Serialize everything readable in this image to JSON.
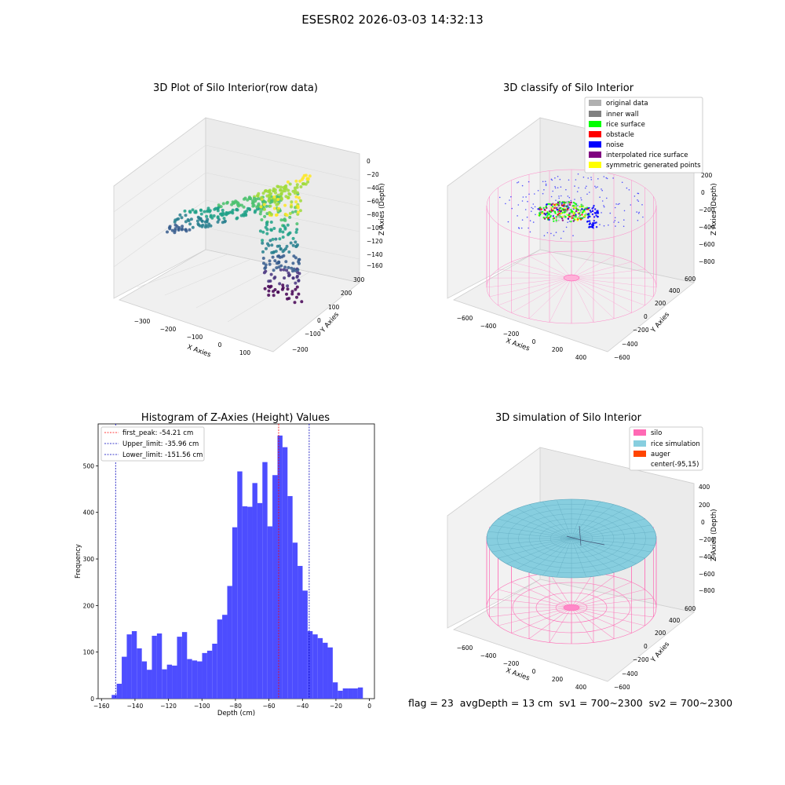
{
  "figure_title": "ESESR02 2026-03-03 14:32:13",
  "status": {
    "flag": "flag = 23",
    "avg_depth": "avgDepth = 13 cm",
    "sv1": "sv1 = 700~2300",
    "sv2": "sv2 = 700~2300"
  },
  "colors": {
    "histogram_bar": "#4d4dff",
    "first_peak_line": "#ff0000",
    "limit_line": "#0000bb",
    "silo": "#ff69b4",
    "rice_simulation": "#87cedf",
    "auger": "#ff4500",
    "original_data": "#b0b0b0",
    "inner_wall": "#808080",
    "rice_surface": "#00ff00",
    "obstacle": "#ff0000",
    "noise": "#0000ff",
    "interpolated_rice_surface": "#800080",
    "symmetric_generated_points": "#ffff00"
  },
  "chart_data": [
    {
      "type": "scatter",
      "title": "3D Plot of Silo Interior(row data)",
      "xlabel": "X Axies",
      "ylabel": "Y Axies",
      "zlabel": "Z Axies (Depth)",
      "x_ticks": [
        "−300",
        "−200",
        "−100",
        "0",
        "100"
      ],
      "y_ticks": [
        "−200",
        "−100",
        "0",
        "100",
        "200",
        "300"
      ],
      "z_ticks": [
        "0",
        "−20",
        "−40",
        "−60",
        "−80",
        "−100",
        "−120",
        "−140",
        "−160"
      ],
      "zlim": [
        -160,
        0
      ],
      "colormap": "viridis"
    },
    {
      "type": "scatter",
      "title": "3D classify of Silo Interior",
      "xlabel": "X Axies",
      "ylabel": "Y Axies",
      "zlabel": "Z Axies (Depth)",
      "x_ticks": [
        "−600",
        "−400",
        "−200",
        "0",
        "200",
        "400"
      ],
      "y_ticks": [
        "−600",
        "−400",
        "−200",
        "0",
        "200",
        "400",
        "600"
      ],
      "z_ticks": [
        "200",
        "0",
        "−200",
        "−400",
        "−600",
        "−800"
      ],
      "legend_placement": "top-right",
      "legend": [
        "original data",
        "inner wall",
        "rice surface",
        "obstacle",
        "noise",
        "interpolated rice surface",
        "symmetric generated points"
      ]
    },
    {
      "type": "bar",
      "title": "Histogram of Z-Axies (Height) Values",
      "xlabel": "Depth (cm)",
      "ylabel": "Frequency",
      "xlim": [
        -162,
        3
      ],
      "ylim": [
        0,
        590
      ],
      "x_ticks": [
        -160,
        -140,
        -120,
        -100,
        -80,
        -60,
        -40,
        -20,
        0
      ],
      "y_ticks": [
        0,
        100,
        200,
        300,
        400,
        500
      ],
      "bin_start": -153.9,
      "bin_width": 3.0,
      "values": [
        8,
        32,
        90,
        138,
        145,
        108,
        80,
        62,
        135,
        140,
        63,
        73,
        71,
        133,
        143,
        85,
        82,
        80,
        98,
        103,
        118,
        170,
        180,
        242,
        368,
        488,
        413,
        412,
        463,
        420,
        508,
        370,
        480,
        565,
        540,
        435,
        335,
        285,
        232,
        145,
        138,
        130,
        120,
        110,
        35,
        17,
        22,
        22,
        22,
        24
      ],
      "vlines": [
        {
          "label": "first_peak: -54.21 cm",
          "x": -54.21,
          "color": "#ff0000"
        },
        {
          "label": "Upper_limit: -35.96 cm",
          "x": -35.96,
          "color": "#0000bb"
        },
        {
          "label": "Lower_limit: -151.56 cm",
          "x": -151.56,
          "color": "#0000bb"
        }
      ],
      "legend_placement": "top-left"
    },
    {
      "type": "scatter",
      "title": "3D simulation of Silo Interior",
      "xlabel": "X Axies",
      "ylabel": "Y Axies",
      "zlabel": "Z Axies (Depth)",
      "x_ticks": [
        "−600",
        "−400",
        "−200",
        "0",
        "200",
        "400"
      ],
      "y_ticks": [
        "−600",
        "−400",
        "−200",
        "0",
        "200",
        "400",
        "600"
      ],
      "z_ticks": [
        "400",
        "200",
        "0",
        "−200",
        "−400",
        "−600",
        "−800"
      ],
      "legend_placement": "top-right",
      "legend": [
        "silo",
        "rice simulation",
        "auger",
        "center(-95,15)"
      ]
    }
  ]
}
